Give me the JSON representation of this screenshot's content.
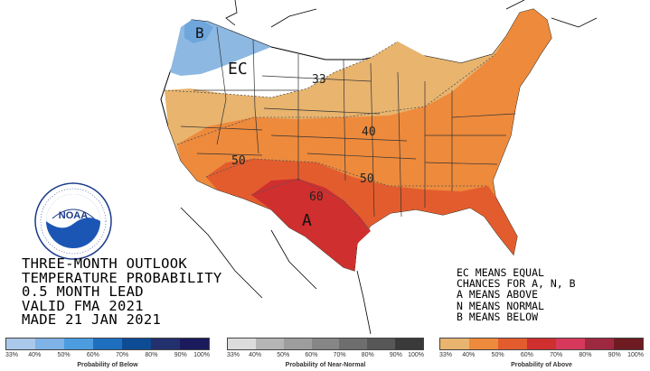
{
  "title_lines": [
    "THREE-MONTH OUTLOOK",
    "TEMPERATURE PROBABILITY",
    "0.5 MONTH LEAD",
    "VALID FMA 2021",
    "MADE 21 JAN 2021"
  ],
  "key_lines": [
    "EC MEANS EQUAL",
    "CHANCES FOR A, N, B",
    "A MEANS ABOVE",
    "N MEANS NORMAL",
    "B MEANS BELOW"
  ],
  "map_labels": {
    "below": "B",
    "equal_chances": "EC",
    "above": "A",
    "contour_33": "33",
    "contour_40": "40",
    "contour_50_west": "50",
    "contour_50_east": "50",
    "contour_60": "60"
  },
  "legends": [
    {
      "caption": "Probability of Below",
      "ticks": [
        "33%",
        "40%",
        "50%",
        "60%",
        "70%",
        "80%",
        "90%",
        "100%"
      ],
      "colors": [
        "#a9c8ea",
        "#7fb2e6",
        "#4b9ddf",
        "#1f6fc0",
        "#0d4c94",
        "#23306e",
        "#1a1a5c"
      ]
    },
    {
      "caption": "Probability of Near-Normal",
      "ticks": [
        "33%",
        "40%",
        "50%",
        "60%",
        "70%",
        "80%",
        "90%",
        "100%"
      ],
      "colors": [
        "#dddcdc",
        "#b5b5b5",
        "#9d9d9d",
        "#868686",
        "#6e6e6e",
        "#575757",
        "#3a3a3a"
      ]
    },
    {
      "caption": "Probability of Above",
      "ticks": [
        "33%",
        "40%",
        "50%",
        "60%",
        "70%",
        "80%",
        "90%",
        "100%"
      ],
      "colors": [
        "#e8b46e",
        "#ee8a3c",
        "#e35c2e",
        "#cf2f2f",
        "#d6395c",
        "#9e2840",
        "#6e1c22"
      ]
    }
  ],
  "colors": {
    "below_33": "#8db8e2",
    "below_40": "#6fa6dc",
    "above_33": "#e8b46e",
    "above_40": "#ee8a3c",
    "above_50": "#e35c2e",
    "above_60": "#cf2f2f",
    "equal_chances": "#ffffff",
    "border": "#000000"
  }
}
